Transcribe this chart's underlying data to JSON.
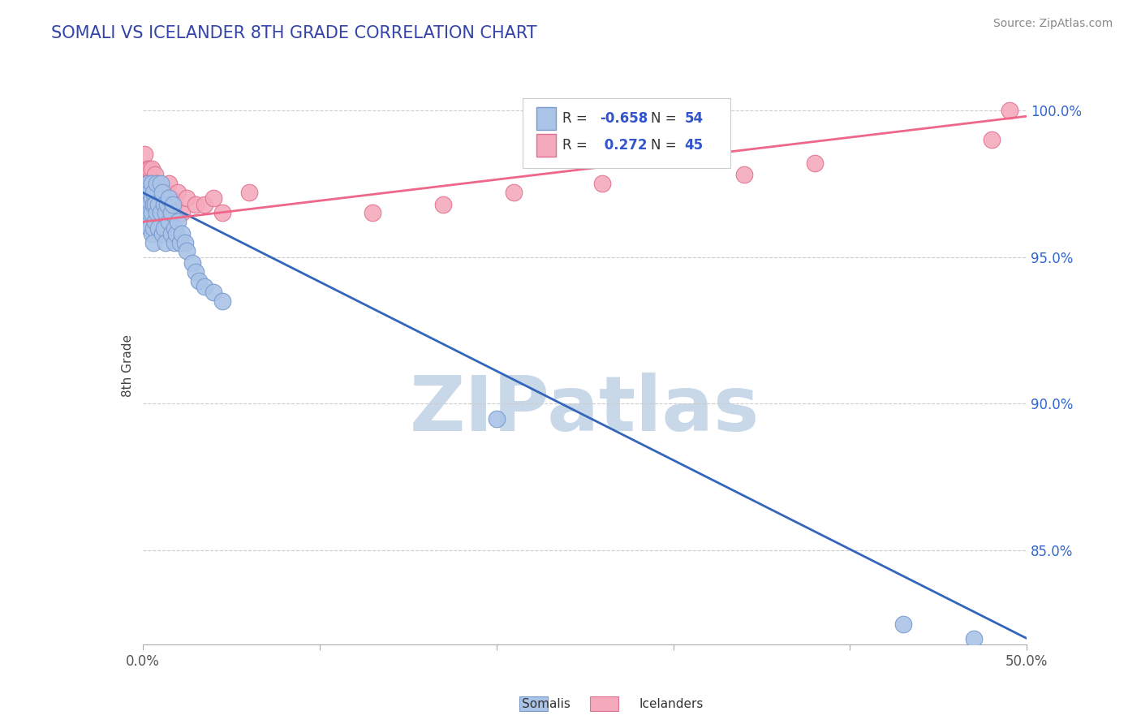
{
  "title": "SOMALI VS ICELANDER 8TH GRADE CORRELATION CHART",
  "source_text": "Source: ZipAtlas.com",
  "ylabel": "8th Grade",
  "xlim": [
    0.0,
    0.5
  ],
  "ylim": [
    0.818,
    1.008
  ],
  "xtick_positions": [
    0.0,
    0.1,
    0.2,
    0.3,
    0.4,
    0.5
  ],
  "xticklabels_show": [
    "0.0%",
    "",
    "",
    "",
    "",
    "50.0%"
  ],
  "ytick_positions": [
    0.85,
    0.9,
    0.95,
    1.0
  ],
  "yticklabels": [
    "85.0%",
    "90.0%",
    "95.0%",
    "100.0%"
  ],
  "grid_color": "#cccccc",
  "background_color": "#ffffff",
  "watermark_text": "ZIPatlas",
  "watermark_color": "#c8d8e8",
  "somali_color": "#aac4e8",
  "somali_edge_color": "#7799cc",
  "icelander_color": "#f4aabc",
  "icelander_edge_color": "#e07090",
  "somali_line_color": "#3366bb",
  "icelander_line_color": "#ee6688",
  "R_somali": -0.658,
  "N_somali": 54,
  "R_icelander": 0.272,
  "N_icelander": 45,
  "somali_line_y0": 0.972,
  "somali_line_y1": 0.82,
  "icelander_line_y0": 0.962,
  "icelander_line_y1": 0.998,
  "somali_x": [
    0.001,
    0.002,
    0.002,
    0.003,
    0.003,
    0.003,
    0.004,
    0.004,
    0.004,
    0.005,
    0.005,
    0.005,
    0.005,
    0.006,
    0.006,
    0.006,
    0.006,
    0.007,
    0.007,
    0.008,
    0.008,
    0.009,
    0.009,
    0.01,
    0.01,
    0.011,
    0.011,
    0.012,
    0.012,
    0.013,
    0.013,
    0.014,
    0.015,
    0.015,
    0.016,
    0.016,
    0.017,
    0.018,
    0.018,
    0.019,
    0.02,
    0.021,
    0.022,
    0.024,
    0.025,
    0.028,
    0.03,
    0.032,
    0.035,
    0.04,
    0.045,
    0.2,
    0.43,
    0.47
  ],
  "somali_y": [
    0.968,
    0.97,
    0.966,
    0.975,
    0.968,
    0.963,
    0.972,
    0.965,
    0.96,
    0.975,
    0.97,
    0.965,
    0.958,
    0.972,
    0.968,
    0.96,
    0.955,
    0.968,
    0.962,
    0.975,
    0.965,
    0.968,
    0.96,
    0.975,
    0.965,
    0.972,
    0.958,
    0.968,
    0.96,
    0.965,
    0.955,
    0.968,
    0.97,
    0.962,
    0.965,
    0.958,
    0.968,
    0.96,
    0.955,
    0.958,
    0.962,
    0.955,
    0.958,
    0.955,
    0.952,
    0.948,
    0.945,
    0.942,
    0.94,
    0.938,
    0.935,
    0.895,
    0.825,
    0.82
  ],
  "icelander_x": [
    0.001,
    0.002,
    0.002,
    0.003,
    0.003,
    0.003,
    0.004,
    0.004,
    0.005,
    0.005,
    0.005,
    0.006,
    0.006,
    0.006,
    0.007,
    0.007,
    0.008,
    0.008,
    0.009,
    0.009,
    0.01,
    0.01,
    0.011,
    0.012,
    0.013,
    0.014,
    0.015,
    0.016,
    0.018,
    0.02,
    0.022,
    0.025,
    0.03,
    0.035,
    0.04,
    0.045,
    0.06,
    0.13,
    0.17,
    0.21,
    0.26,
    0.34,
    0.38,
    0.48,
    0.49
  ],
  "icelander_y": [
    0.985,
    0.978,
    0.975,
    0.98,
    0.975,
    0.97,
    0.98,
    0.975,
    0.98,
    0.975,
    0.97,
    0.975,
    0.968,
    0.972,
    0.978,
    0.968,
    0.975,
    0.97,
    0.972,
    0.968,
    0.972,
    0.965,
    0.97,
    0.968,
    0.972,
    0.97,
    0.975,
    0.97,
    0.968,
    0.972,
    0.965,
    0.97,
    0.968,
    0.968,
    0.97,
    0.965,
    0.972,
    0.965,
    0.968,
    0.972,
    0.975,
    0.978,
    0.982,
    0.99,
    1.0
  ]
}
